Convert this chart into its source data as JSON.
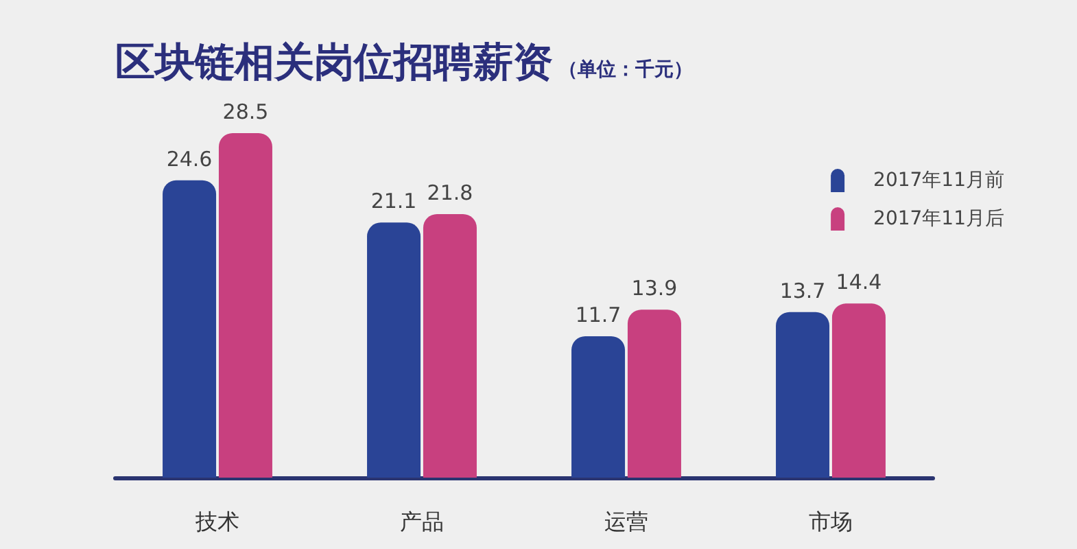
{
  "chart_data": {
    "type": "bar",
    "title": "区块链相关岗位招聘薪资",
    "subtitle": "（单位：千元）",
    "categories": [
      "技术",
      "产品",
      "运营",
      "市场"
    ],
    "series": [
      {
        "name": "2017年11月前",
        "color": "#2a4496",
        "values": [
          24.6,
          21.1,
          11.7,
          13.7
        ]
      },
      {
        "name": "2017年11月后",
        "color": "#c8407f",
        "values": [
          28.5,
          21.8,
          13.9,
          14.4
        ]
      }
    ],
    "data_labels": true,
    "legend": "top right",
    "grid": false,
    "tick_labels": "x"
  }
}
